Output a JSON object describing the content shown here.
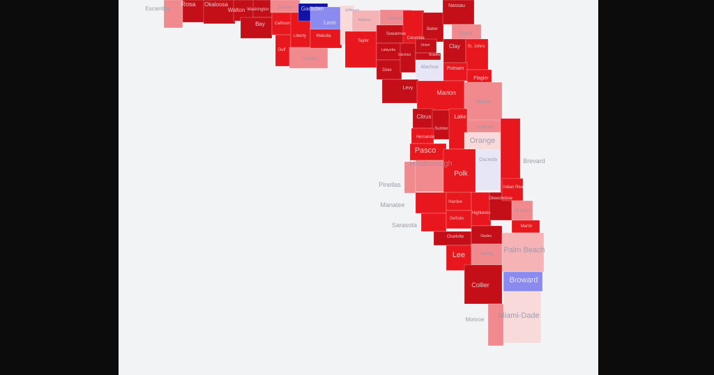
{
  "map": {
    "legend_colors": {
      "strong_r": "#c40f18",
      "r": "#e8171d",
      "lean_r": "#f08a8f",
      "tilt_r": "#f9dada",
      "tilt_d": "#e6e6f7",
      "lean_d": "#8a8aef",
      "strong_d": "#1212a6"
    },
    "counties": [
      {
        "name": "Escambia",
        "fill": "#f08a8f"
      },
      {
        "name": "Rosa",
        "fill": "#c40f18"
      },
      {
        "name": "Okaloosa",
        "fill": "#c40f18"
      },
      {
        "name": "Walton",
        "fill": "#c40f18"
      },
      {
        "name": "Washington",
        "fill": "#c40f18"
      },
      {
        "name": "Bay",
        "fill": "#c40f18"
      },
      {
        "name": "Jackson",
        "fill": "#f08a8f"
      },
      {
        "name": "Calhoun",
        "fill": "#e8171d"
      },
      {
        "name": "Gulf",
        "fill": "#e8171d"
      },
      {
        "name": "Liberty",
        "fill": "#e8171d"
      },
      {
        "name": "Franklin",
        "fill": "#f08a8f"
      },
      {
        "name": "Gadsden",
        "fill": "#1212a6"
      },
      {
        "name": "Leon",
        "fill": "#8a8aef"
      },
      {
        "name": "Wakulla",
        "fill": "#e8171d"
      },
      {
        "name": "Jefferson",
        "fill": "#f9dada"
      },
      {
        "name": "Madison",
        "fill": "#f6b3b6"
      },
      {
        "name": "Hamilton",
        "fill": "#f08a8f"
      },
      {
        "name": "Taylor",
        "fill": "#e8171d"
      },
      {
        "name": "Suwannee",
        "fill": "#c40f18"
      },
      {
        "name": "Columbia",
        "fill": "#e8171d"
      },
      {
        "name": "Baker",
        "fill": "#c40f18"
      },
      {
        "name": "Nassau",
        "fill": "#c40f18"
      },
      {
        "name": "Duval",
        "fill": "#f08a8f"
      },
      {
        "name": "Lafayette",
        "fill": "#c40f18"
      },
      {
        "name": "Dixie",
        "fill": "#c40f18"
      },
      {
        "name": "Gilchrist",
        "fill": "#c40f18"
      },
      {
        "name": "Union",
        "fill": "#c40f18"
      },
      {
        "name": "Bradford",
        "fill": "#c40f18"
      },
      {
        "name": "Alachua",
        "fill": "#e6e6f7"
      },
      {
        "name": "Clay",
        "fill": "#c40f18"
      },
      {
        "name": "St Johns",
        "fill": "#e8171d"
      },
      {
        "name": "Putnam",
        "fill": "#e8171d"
      },
      {
        "name": "Flagler",
        "fill": "#e8171d"
      },
      {
        "name": "Levy",
        "fill": "#c40f18"
      },
      {
        "name": "Marion",
        "fill": "#e8171d"
      },
      {
        "name": "Volusia",
        "fill": "#f08a8f"
      },
      {
        "name": "Citrus",
        "fill": "#c40f18"
      },
      {
        "name": "Sumter",
        "fill": "#c40f18"
      },
      {
        "name": "Hernando",
        "fill": "#e8171d"
      },
      {
        "name": "Pasco",
        "fill": "#e8171d"
      },
      {
        "name": "Lake",
        "fill": "#e8171d"
      },
      {
        "name": "Seminole",
        "fill": "#f08a8f"
      },
      {
        "name": "Orange",
        "fill": "#f9dada"
      },
      {
        "name": "Osceola",
        "fill": "#e6e6f7"
      },
      {
        "name": "Brevard",
        "fill": "#e8171d"
      },
      {
        "name": "Pinellas",
        "fill": "#f08a8f"
      },
      {
        "name": "Hillsborough",
        "fill": "#f08a8f"
      },
      {
        "name": "Polk",
        "fill": "#e8171d"
      },
      {
        "name": "Manatee",
        "fill": "#e8171d"
      },
      {
        "name": "Hardee",
        "fill": "#e8171d"
      },
      {
        "name": "Highlands",
        "fill": "#e8171d"
      },
      {
        "name": "Okeechobee",
        "fill": "#c40f18"
      },
      {
        "name": "Indian River",
        "fill": "#e8171d"
      },
      {
        "name": "St Lucie",
        "fill": "#f08a8f"
      },
      {
        "name": "Martin",
        "fill": "#e8171d"
      },
      {
        "name": "Sarasota",
        "fill": "#e8171d"
      },
      {
        "name": "DeSoto",
        "fill": "#e8171d"
      },
      {
        "name": "Charlotte",
        "fill": "#c40f18"
      },
      {
        "name": "Glades",
        "fill": "#c40f18"
      },
      {
        "name": "Palm Beach",
        "fill": "#f6b3b6"
      },
      {
        "name": "Lee",
        "fill": "#e8171d"
      },
      {
        "name": "Hendry",
        "fill": "#f08a8f"
      },
      {
        "name": "Collier",
        "fill": "#c40f18"
      },
      {
        "name": "Broward",
        "fill": "#8a8aef"
      },
      {
        "name": "Miami-Dade",
        "fill": "#f9dada"
      },
      {
        "name": "Monroe",
        "fill": "#f08a8f"
      }
    ],
    "labels": {
      "Escambia": "Escambia",
      "Rosa": "Rosa",
      "Okaloosa": "Okaloosa",
      "Walton": "Walton",
      "Washington": "Washington",
      "Bay": "Bay",
      "Calhoun": "Calhoun",
      "Gulf": "Gulf",
      "Liberty": "Liberty",
      "Gadsden": "Gadsden",
      "Leon": "Leon",
      "Wakulla": "Wakulla",
      "Jefferson": "Jefferson",
      "Madison": "Madison",
      "Taylor": "Taylor",
      "Suwannee": "Suwannee",
      "Columbia": "Columbia",
      "Baker": "Baker",
      "Nassau": "Nassau",
      "Lafayette": "Lafayette",
      "Dixie": "Dixie",
      "Gilchrist": "Gilchrist",
      "Union": "Union",
      "Bradford": "Bradford",
      "Alachua": "Alachua",
      "Clay": "Clay",
      "St Johns": "St. Johns",
      "Putnam": "Putnam",
      "Flagler": "Flagler",
      "Levy": "Levy",
      "Marion": "Marion",
      "Citrus": "Citrus",
      "Sumter": "Sumter",
      "Hernando": "Hernando",
      "Pasco": "Pasco",
      "Lake": "Lake",
      "Orange": "Orange",
      "Osceola": "Osceola",
      "Brevard": "Brevard",
      "Pinellas": "Pinellas",
      "Hillsborough": "Hillsborough",
      "Polk": "Polk",
      "Manatee": "Manatee",
      "Hardee": "Hardee",
      "Highlands": "Highlands",
      "Okeechobee": "Okeechobee",
      "Indian River": "Indian River",
      "Martin": "Martin",
      "Sarasota": "Sarasota",
      "DeSoto": "DeSoto",
      "Charlotte": "Charlotte",
      "Glades": "Glades",
      "Palm Beach": "Palm Beach",
      "Lee": "Lee",
      "Broward": "Broward",
      "Collier": "Collier",
      "Miami-Dade": "Miami-Dade",
      "Monroe": "Monroe"
    }
  }
}
